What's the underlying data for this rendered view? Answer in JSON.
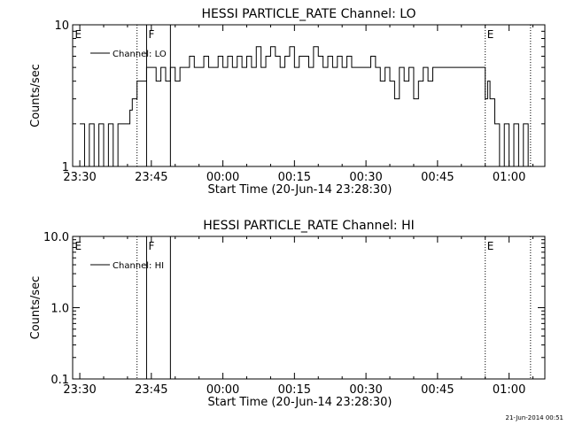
{
  "footer_stamp": "21-Jun-2014 00:51",
  "chart_data": [
    {
      "type": "line",
      "title": "HESSI PARTICLE_RATE Channel: LO",
      "xlabel": "Start Time (20-Jun-14 23:28:30)",
      "ylabel": "Counts/sec",
      "yscale": "log",
      "ylim": [
        1,
        10
      ],
      "ytick_labels": [
        "1",
        "10"
      ],
      "ytick_values": [
        1,
        10
      ],
      "xlim": [
        "23:28:30",
        "01:07:30"
      ],
      "xtick_labels": [
        "23:30",
        "23:45",
        "00:00",
        "00:15",
        "00:30",
        "00:45",
        "01:00"
      ],
      "xtick_minutes": [
        90,
        105,
        120,
        135,
        150,
        165,
        180
      ],
      "x_start_minutes": 88.5,
      "x_end_minutes": 187.5,
      "legend": {
        "entries": [
          "Channel: LO"
        ],
        "placement": "top-left"
      },
      "markers": [
        {
          "label": "E",
          "minute": 88.6,
          "style": "none"
        },
        {
          "label": "",
          "minute": 102.0,
          "style": "dotted"
        },
        {
          "label": "F",
          "minute": 104.0,
          "style": "solid"
        },
        {
          "label": "",
          "minute": 109.0,
          "style": "solid"
        },
        {
          "label": "E",
          "minute": 175.0,
          "style": "dotted"
        },
        {
          "label": "",
          "minute": 184.5,
          "style": "dotted"
        }
      ],
      "series": [
        {
          "name": "Channel: LO",
          "x_minutes": [
            90,
            91,
            92,
            93,
            94,
            95,
            96,
            97,
            98,
            99,
            100,
            100.5,
            101,
            102,
            103,
            104,
            105,
            106,
            107,
            108,
            109,
            110,
            111,
            112,
            113,
            114,
            115,
            116,
            117,
            118,
            119,
            120,
            121,
            122,
            123,
            124,
            125,
            126,
            127,
            128,
            129,
            130,
            131,
            132,
            133,
            134,
            135,
            136,
            137,
            138,
            139,
            140,
            141,
            142,
            143,
            144,
            145,
            146,
            147,
            148,
            149,
            150,
            151,
            152,
            153,
            154,
            155,
            156,
            157,
            158,
            159,
            160,
            161,
            162,
            163,
            164,
            165,
            166,
            167,
            168,
            169,
            170,
            171,
            172,
            173,
            174,
            175,
            175.5,
            176,
            177,
            178,
            179,
            180,
            181,
            182,
            183,
            184
          ],
          "values": [
            2,
            1,
            2,
            1,
            2,
            1,
            2,
            1,
            2,
            2,
            2,
            2.5,
            3,
            4,
            4,
            5,
            5,
            4,
            5,
            4,
            5,
            4,
            5,
            5,
            6,
            5,
            5,
            6,
            5,
            5,
            6,
            5,
            6,
            5,
            6,
            5,
            6,
            5,
            7,
            5,
            6,
            7,
            6,
            5,
            6,
            7,
            5,
            6,
            6,
            5,
            7,
            6,
            5,
            6,
            5,
            6,
            5,
            6,
            5,
            5,
            5,
            5,
            6,
            5,
            4,
            5,
            4,
            3,
            5,
            4,
            5,
            3,
            4,
            5,
            4,
            5,
            5,
            5,
            5,
            5,
            5,
            5,
            5,
            5,
            5,
            5,
            3,
            4,
            3,
            2,
            1,
            2,
            1,
            2,
            1,
            2,
            1
          ]
        }
      ]
    },
    {
      "type": "line",
      "title": "HESSI PARTICLE_RATE Channel: HI",
      "xlabel": "Start Time (20-Jun-14 23:28:30)",
      "ylabel": "Counts/sec",
      "yscale": "log",
      "ylim": [
        0.1,
        10
      ],
      "ytick_labels": [
        "0.1",
        "1.0",
        "10.0"
      ],
      "ytick_values": [
        0.1,
        1,
        10
      ],
      "xlim": [
        "23:28:30",
        "01:07:30"
      ],
      "xtick_labels": [
        "23:30",
        "23:45",
        "00:00",
        "00:15",
        "00:30",
        "00:45",
        "01:00"
      ],
      "xtick_minutes": [
        90,
        105,
        120,
        135,
        150,
        165,
        180
      ],
      "x_start_minutes": 88.5,
      "x_end_minutes": 187.5,
      "legend": {
        "entries": [
          "Channel: HI"
        ],
        "placement": "top-left"
      },
      "markers": [
        {
          "label": "E",
          "minute": 88.6,
          "style": "none"
        },
        {
          "label": "",
          "minute": 102.0,
          "style": "dotted"
        },
        {
          "label": "F",
          "minute": 104.0,
          "style": "solid"
        },
        {
          "label": "",
          "minute": 109.0,
          "style": "solid"
        },
        {
          "label": "E",
          "minute": 175.0,
          "style": "dotted"
        },
        {
          "label": "",
          "minute": 184.5,
          "style": "dotted"
        }
      ],
      "series": [
        {
          "name": "Channel: HI",
          "x_minutes": [],
          "values": []
        }
      ]
    }
  ]
}
